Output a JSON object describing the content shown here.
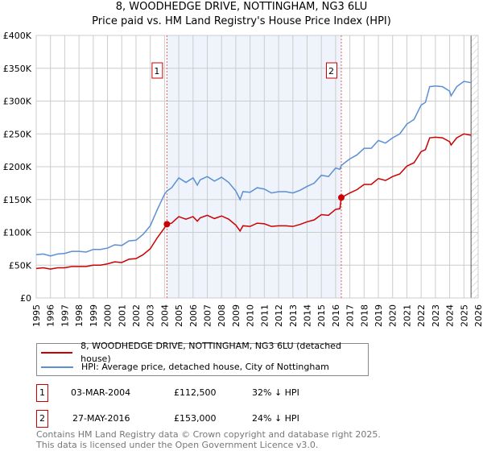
{
  "chart_data": {
    "type": "line",
    "title": "8, WOODHEDGE DRIVE, NOTTINGHAM, NG3 6LU",
    "subtitle": "Price paid vs. HM Land Registry's House Price Index (HPI)",
    "xlim": [
      1995,
      2026
    ],
    "ylim": [
      0,
      400000
    ],
    "y_ticks": [
      {
        "v": 0,
        "label": "£0"
      },
      {
        "v": 50000,
        "label": "£50K"
      },
      {
        "v": 100000,
        "label": "£100K"
      },
      {
        "v": 150000,
        "label": "£150K"
      },
      {
        "v": 200000,
        "label": "£200K"
      },
      {
        "v": 250000,
        "label": "£250K"
      },
      {
        "v": 300000,
        "label": "£300K"
      },
      {
        "v": 350000,
        "label": "£350K"
      },
      {
        "v": 400000,
        "label": "£400K"
      }
    ],
    "x_ticks": [
      "1995",
      "1996",
      "1997",
      "1998",
      "1999",
      "2000",
      "2001",
      "2002",
      "2003",
      "2004",
      "2005",
      "2006",
      "2007",
      "2008",
      "2009",
      "2010",
      "2011",
      "2012",
      "2013",
      "2014",
      "2015",
      "2016",
      "2017",
      "2018",
      "2019",
      "2020",
      "2021",
      "2022",
      "2023",
      "2024",
      "2025",
      "2026"
    ],
    "grid": true,
    "shaded_range": [
      2004.17,
      2016.4
    ],
    "forecast_hatch_from": 2025.5,
    "x": [
      1995,
      1995.5,
      1996,
      1996.5,
      1997,
      1997.5,
      1998,
      1998.5,
      1999,
      1999.5,
      2000,
      2000.5,
      2001,
      2001.5,
      2002,
      2002.5,
      2003,
      2003.5,
      2004,
      2004.17,
      2004.5,
      2005,
      2005.5,
      2006,
      2006.3,
      2006.5,
      2007,
      2007.5,
      2008,
      2008.5,
      2009,
      2009.3,
      2009.5,
      2010,
      2010.5,
      2011,
      2011.5,
      2012,
      2012.5,
      2013,
      2013.5,
      2014,
      2014.5,
      2015,
      2015.5,
      2016,
      2016.3,
      2016.4,
      2017,
      2017.5,
      2018,
      2018.5,
      2019,
      2019.5,
      2020,
      2020.5,
      2021,
      2021.5,
      2022,
      2022.3,
      2022.6,
      2023,
      2023.5,
      2024,
      2024.1,
      2024.5,
      2025,
      2025.5
    ],
    "series": [
      {
        "name": "8, WOODHEDGE DRIVE, NOTTINGHAM, NG3 6LU (detached house)",
        "color": "#cc0000",
        "values": [
          45,
          46,
          44,
          46,
          46,
          48,
          48,
          48,
          50,
          50,
          52,
          55,
          54,
          59,
          60,
          66,
          75,
          92,
          107,
          112.5,
          114,
          124,
          120,
          124,
          117,
          122,
          126,
          121,
          125,
          120,
          111,
          102,
          110,
          109,
          114,
          113,
          109,
          110,
          110,
          109,
          112,
          116,
          119,
          127,
          126,
          135,
          136,
          153,
          160,
          165,
          173,
          173,
          182,
          179,
          185,
          189,
          201,
          206,
          223,
          226,
          244,
          245,
          244,
          238,
          233,
          244,
          250,
          248
        ]
      },
      {
        "name": "HPI: Average price, detached house, City of Nottingham",
        "color": "#5b8fd4",
        "values": [
          66,
          67,
          64,
          67,
          68,
          71,
          71,
          70,
          74,
          74,
          76,
          81,
          80,
          87,
          88,
          97,
          110,
          135,
          158,
          163,
          168,
          183,
          176,
          183,
          172,
          180,
          185,
          178,
          184,
          176,
          163,
          150,
          162,
          161,
          168,
          166,
          160,
          162,
          162,
          160,
          164,
          170,
          175,
          187,
          185,
          198,
          196,
          202,
          212,
          218,
          228,
          228,
          240,
          236,
          244,
          250,
          265,
          272,
          294,
          298,
          322,
          323,
          322,
          315,
          308,
          322,
          330,
          328
        ]
      }
    ],
    "value_unit": "£ thousands",
    "sales": [
      {
        "num": "1",
        "x": 2004.17,
        "value": 112.5,
        "date": "03-MAR-2004",
        "price": "£112,500",
        "hpi": "32% ↓ HPI"
      },
      {
        "num": "2",
        "x": 2016.4,
        "value": 153,
        "date": "27-MAY-2016",
        "price": "£153,000",
        "hpi": "24% ↓ HPI"
      }
    ],
    "legend_placement": "below"
  },
  "footer": {
    "line1": "Contains HM Land Registry data © Crown copyright and database right 2025.",
    "line2": "This data is licensed under the Open Government Licence v3.0."
  }
}
